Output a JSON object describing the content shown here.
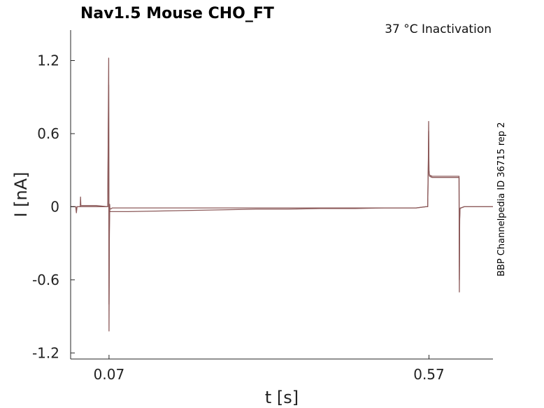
{
  "chart_data": {
    "type": "line",
    "title": "Nav1.5  Mouse  CHO_FT",
    "annotation": "37 °C  Inactivation",
    "side_note": "BBP Channelpedia ID 36715 rep 2",
    "xlabel": "t [s]",
    "ylabel": "I [nA]",
    "xlim": [
      0.01,
      0.67
    ],
    "ylim": [
      -1.25,
      1.45
    ],
    "xticks": [
      0.07,
      0.57
    ],
    "xtick_labels": [
      "0.07",
      "0.57"
    ],
    "yticks": [
      1.2,
      0.6,
      0,
      -0.6,
      -1.2
    ],
    "ytick_labels": [
      "1.2",
      "0.6",
      "0",
      "-0.6",
      "-1.2"
    ],
    "grid": false,
    "series_color": "#8c5a5a",
    "series": [
      {
        "x": [
          0.01,
          0.018,
          0.019,
          0.02,
          0.022,
          0.025,
          0.0255,
          0.026,
          0.03,
          0.05,
          0.068,
          0.0695,
          0.07,
          0.0705,
          0.071,
          0.0715,
          0.072,
          0.075,
          0.1,
          0.15,
          0.2,
          0.25,
          0.3,
          0.35,
          0.4,
          0.45,
          0.5,
          0.55,
          0.565,
          0.568,
          0.569,
          0.5695,
          0.57,
          0.5705,
          0.571,
          0.575,
          0.6,
          0.615,
          0.617,
          0.6175,
          0.618,
          0.6185,
          0.619,
          0.62,
          0.625,
          0.64,
          0.67
        ],
        "y": [
          0.0,
          0.0,
          -0.05,
          0.0,
          0.0,
          0.0,
          0.08,
          0.01,
          0.01,
          0.01,
          0.0,
          1.22,
          -1.02,
          -0.3,
          0.02,
          -0.02,
          -0.02,
          -0.01,
          -0.01,
          -0.01,
          -0.01,
          -0.01,
          -0.01,
          -0.01,
          -0.01,
          -0.01,
          -0.01,
          -0.01,
          0.0,
          0.0,
          0.38,
          0.7,
          0.3,
          0.27,
          0.26,
          0.25,
          0.25,
          0.25,
          0.25,
          -0.7,
          -0.1,
          -0.02,
          -0.01,
          -0.01,
          0.0,
          0.0,
          0.0
        ]
      },
      {
        "x": [
          0.01,
          0.018,
          0.019,
          0.02,
          0.022,
          0.025,
          0.026,
          0.03,
          0.05,
          0.068,
          0.0695,
          0.07,
          0.0705,
          0.071,
          0.072,
          0.075,
          0.1,
          0.15,
          0.2,
          0.25,
          0.3,
          0.35,
          0.4,
          0.45,
          0.5,
          0.55,
          0.565,
          0.568,
          0.569,
          0.5695,
          0.57,
          0.5705,
          0.571,
          0.575,
          0.6,
          0.615,
          0.617,
          0.6175,
          0.618,
          0.6185,
          0.619,
          0.62,
          0.625,
          0.64,
          0.67
        ],
        "y": [
          0.0,
          0.0,
          -0.03,
          0.0,
          0.0,
          0.0,
          0.0,
          0.0,
          0.0,
          0.0,
          1.0,
          -0.8,
          -0.2,
          -0.03,
          -0.04,
          -0.04,
          -0.04,
          -0.035,
          -0.03,
          -0.025,
          -0.02,
          -0.02,
          -0.015,
          -0.015,
          -0.01,
          -0.01,
          0.0,
          0.0,
          0.35,
          0.62,
          0.3,
          0.26,
          0.25,
          0.24,
          0.24,
          0.24,
          0.24,
          -0.6,
          -0.1,
          -0.02,
          -0.01,
          -0.01,
          0.0,
          0.0,
          0.0
        ]
      }
    ]
  }
}
